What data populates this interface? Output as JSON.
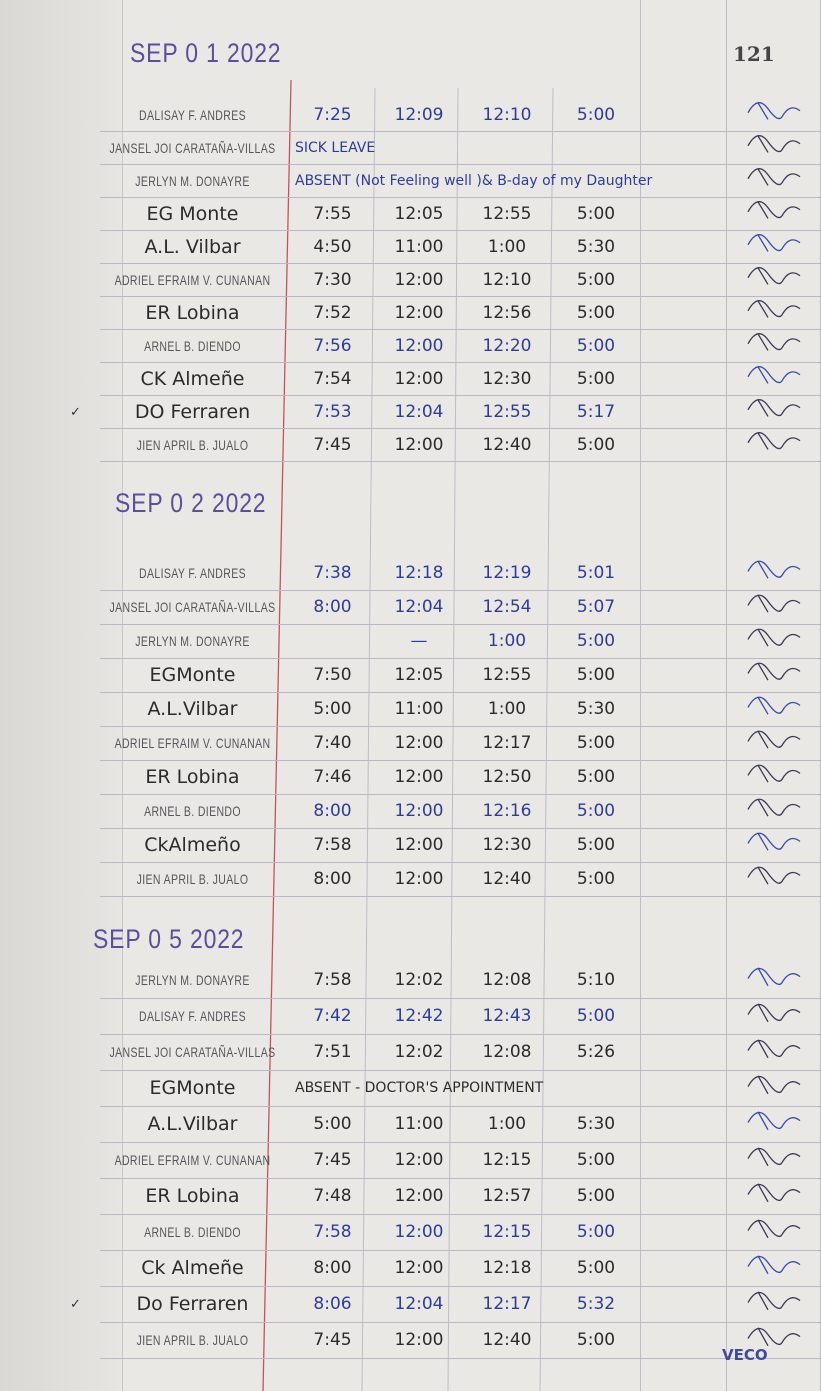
{
  "page_number": "121",
  "ink_colors": {
    "blue": "#2f3c96",
    "black": "#2b2b2b",
    "stamp": "#5a4f9c",
    "margin_red": "#c2555a"
  },
  "sections": [
    {
      "date": "SEP 0 1 2022",
      "rows": [
        {
          "name": "DALISAY F. ANDRES",
          "style": "printed",
          "ink": "blue",
          "times": [
            "7:25",
            "12:09",
            "12:10",
            "5:00"
          ]
        },
        {
          "name": "JANSEL JOI CARATAÑA-VILLAS",
          "style": "printed",
          "ink": "blue",
          "note": "SICK LEAVE"
        },
        {
          "name": "JERLYN M. DONAYRE",
          "style": "printed",
          "ink": "blue",
          "note": "ABSENT (Not Feeling well )& B-day of my Daughter"
        },
        {
          "name": "EG Monte",
          "style": "hand",
          "ink": "black",
          "times": [
            "7:55",
            "12:05",
            "12:55",
            "5:00"
          ]
        },
        {
          "name": "A.L. Vilbar",
          "style": "hand",
          "ink": "black",
          "times": [
            "4:50",
            "11:00",
            "1:00",
            "5:30"
          ]
        },
        {
          "name": "ADRIEL EFRAIM V. CUNANAN",
          "style": "printed",
          "ink": "black",
          "times": [
            "7:30",
            "12:00",
            "12:10",
            "5:00"
          ]
        },
        {
          "name": "ER Lobina",
          "style": "hand",
          "ink": "black",
          "times": [
            "7:52",
            "12:00",
            "12:56",
            "5:00"
          ]
        },
        {
          "name": "ARNEL B. DIENDO",
          "style": "printed",
          "ink": "blue",
          "times": [
            "7:56",
            "12:00",
            "12:20",
            "5:00"
          ]
        },
        {
          "name": "CK Almeñe",
          "style": "hand",
          "ink": "black",
          "times": [
            "7:54",
            "12:00",
            "12:30",
            "5:00"
          ]
        },
        {
          "name": "DO Ferraren",
          "style": "hand",
          "ink": "blue",
          "check": "✓",
          "times": [
            "7:53",
            "12:04",
            "12:55",
            "5:17"
          ]
        },
        {
          "name": "JIEN APRIL B. JUALO",
          "style": "printed",
          "ink": "black",
          "times": [
            "7:45",
            "12:00",
            "12:40",
            "5:00"
          ]
        }
      ]
    },
    {
      "date": "SEP 0 2 2022",
      "rows": [
        {
          "name": "DALISAY F. ANDRES",
          "style": "printed",
          "ink": "blue",
          "times": [
            "7:38",
            "12:18",
            "12:19",
            "5:01"
          ]
        },
        {
          "name": "JANSEL JOI CARATAÑA-VILLAS",
          "style": "printed",
          "ink": "blue",
          "times": [
            "8:00",
            "12:04",
            "12:54",
            "5:07"
          ]
        },
        {
          "name": "JERLYN M. DONAYRE",
          "style": "printed",
          "ink": "blue",
          "times": [
            "",
            "—",
            "1:00",
            "5:00"
          ]
        },
        {
          "name": "EGMonte",
          "style": "hand",
          "ink": "black",
          "times": [
            "7:50",
            "12:05",
            "12:55",
            "5:00"
          ]
        },
        {
          "name": "A.L.Vilbar",
          "style": "hand",
          "ink": "black",
          "times": [
            "5:00",
            "11:00",
            "1:00",
            "5:30"
          ]
        },
        {
          "name": "ADRIEL EFRAIM V. CUNANAN",
          "style": "printed",
          "ink": "black",
          "times": [
            "7:40",
            "12:00",
            "12:17",
            "5:00"
          ]
        },
        {
          "name": "ER Lobina",
          "style": "hand",
          "ink": "black",
          "times": [
            "7:46",
            "12:00",
            "12:50",
            "5:00"
          ]
        },
        {
          "name": "ARNEL B. DIENDO",
          "style": "printed",
          "ink": "blue",
          "times": [
            "8:00",
            "12:00",
            "12:16",
            "5:00"
          ]
        },
        {
          "name": "CkAlmeño",
          "style": "hand",
          "ink": "black",
          "times": [
            "7:58",
            "12:00",
            "12:30",
            "5:00"
          ]
        },
        {
          "name": "JIEN APRIL B. JUALO",
          "style": "printed",
          "ink": "black",
          "times": [
            "8:00",
            "12:00",
            "12:40",
            "5:00"
          ]
        }
      ]
    },
    {
      "date": "SEP 0 5 2022",
      "rows": [
        {
          "name": "JERLYN M. DONAYRE",
          "style": "printed",
          "ink": "black",
          "times": [
            "7:58",
            "12:02",
            "12:08",
            "5:10"
          ]
        },
        {
          "name": "DALISAY F. ANDRES",
          "style": "printed",
          "ink": "blue",
          "times": [
            "7:42",
            "12:42",
            "12:43",
            "5:00"
          ]
        },
        {
          "name": "JANSEL JOI CARATAÑA-VILLAS",
          "style": "printed",
          "ink": "black",
          "times": [
            "7:51",
            "12:02",
            "12:08",
            "5:26"
          ]
        },
        {
          "name": "EGMonte",
          "style": "hand",
          "ink": "black",
          "note": "ABSENT - DOCTOR'S APPOINTMENT"
        },
        {
          "name": "A.L.Vilbar",
          "style": "hand",
          "ink": "black",
          "times": [
            "5:00",
            "11:00",
            "1:00",
            "5:30"
          ]
        },
        {
          "name": "ADRIEL EFRAIM V. CUNANAN",
          "style": "printed",
          "ink": "black",
          "times": [
            "7:45",
            "12:00",
            "12:15",
            "5:00"
          ]
        },
        {
          "name": "ER Lobina",
          "style": "hand",
          "ink": "black",
          "times": [
            "7:48",
            "12:00",
            "12:57",
            "5:00"
          ]
        },
        {
          "name": "ARNEL B. DIENDO",
          "style": "printed",
          "ink": "blue",
          "times": [
            "7:58",
            "12:00",
            "12:15",
            "5:00"
          ]
        },
        {
          "name": "Ck Almeñe",
          "style": "hand",
          "ink": "black",
          "times": [
            "8:00",
            "12:00",
            "12:18",
            "5:00"
          ]
        },
        {
          "name": "Do Ferraren",
          "style": "hand",
          "ink": "blue",
          "check": "✓",
          "times": [
            "8:06",
            "12:04",
            "12:17",
            "5:32"
          ]
        },
        {
          "name": "JIEN APRIL B. JUALO",
          "style": "printed",
          "ink": "black",
          "times": [
            "7:45",
            "12:00",
            "12:40",
            "5:00"
          ]
        }
      ]
    }
  ],
  "signature_mark": "VECO"
}
